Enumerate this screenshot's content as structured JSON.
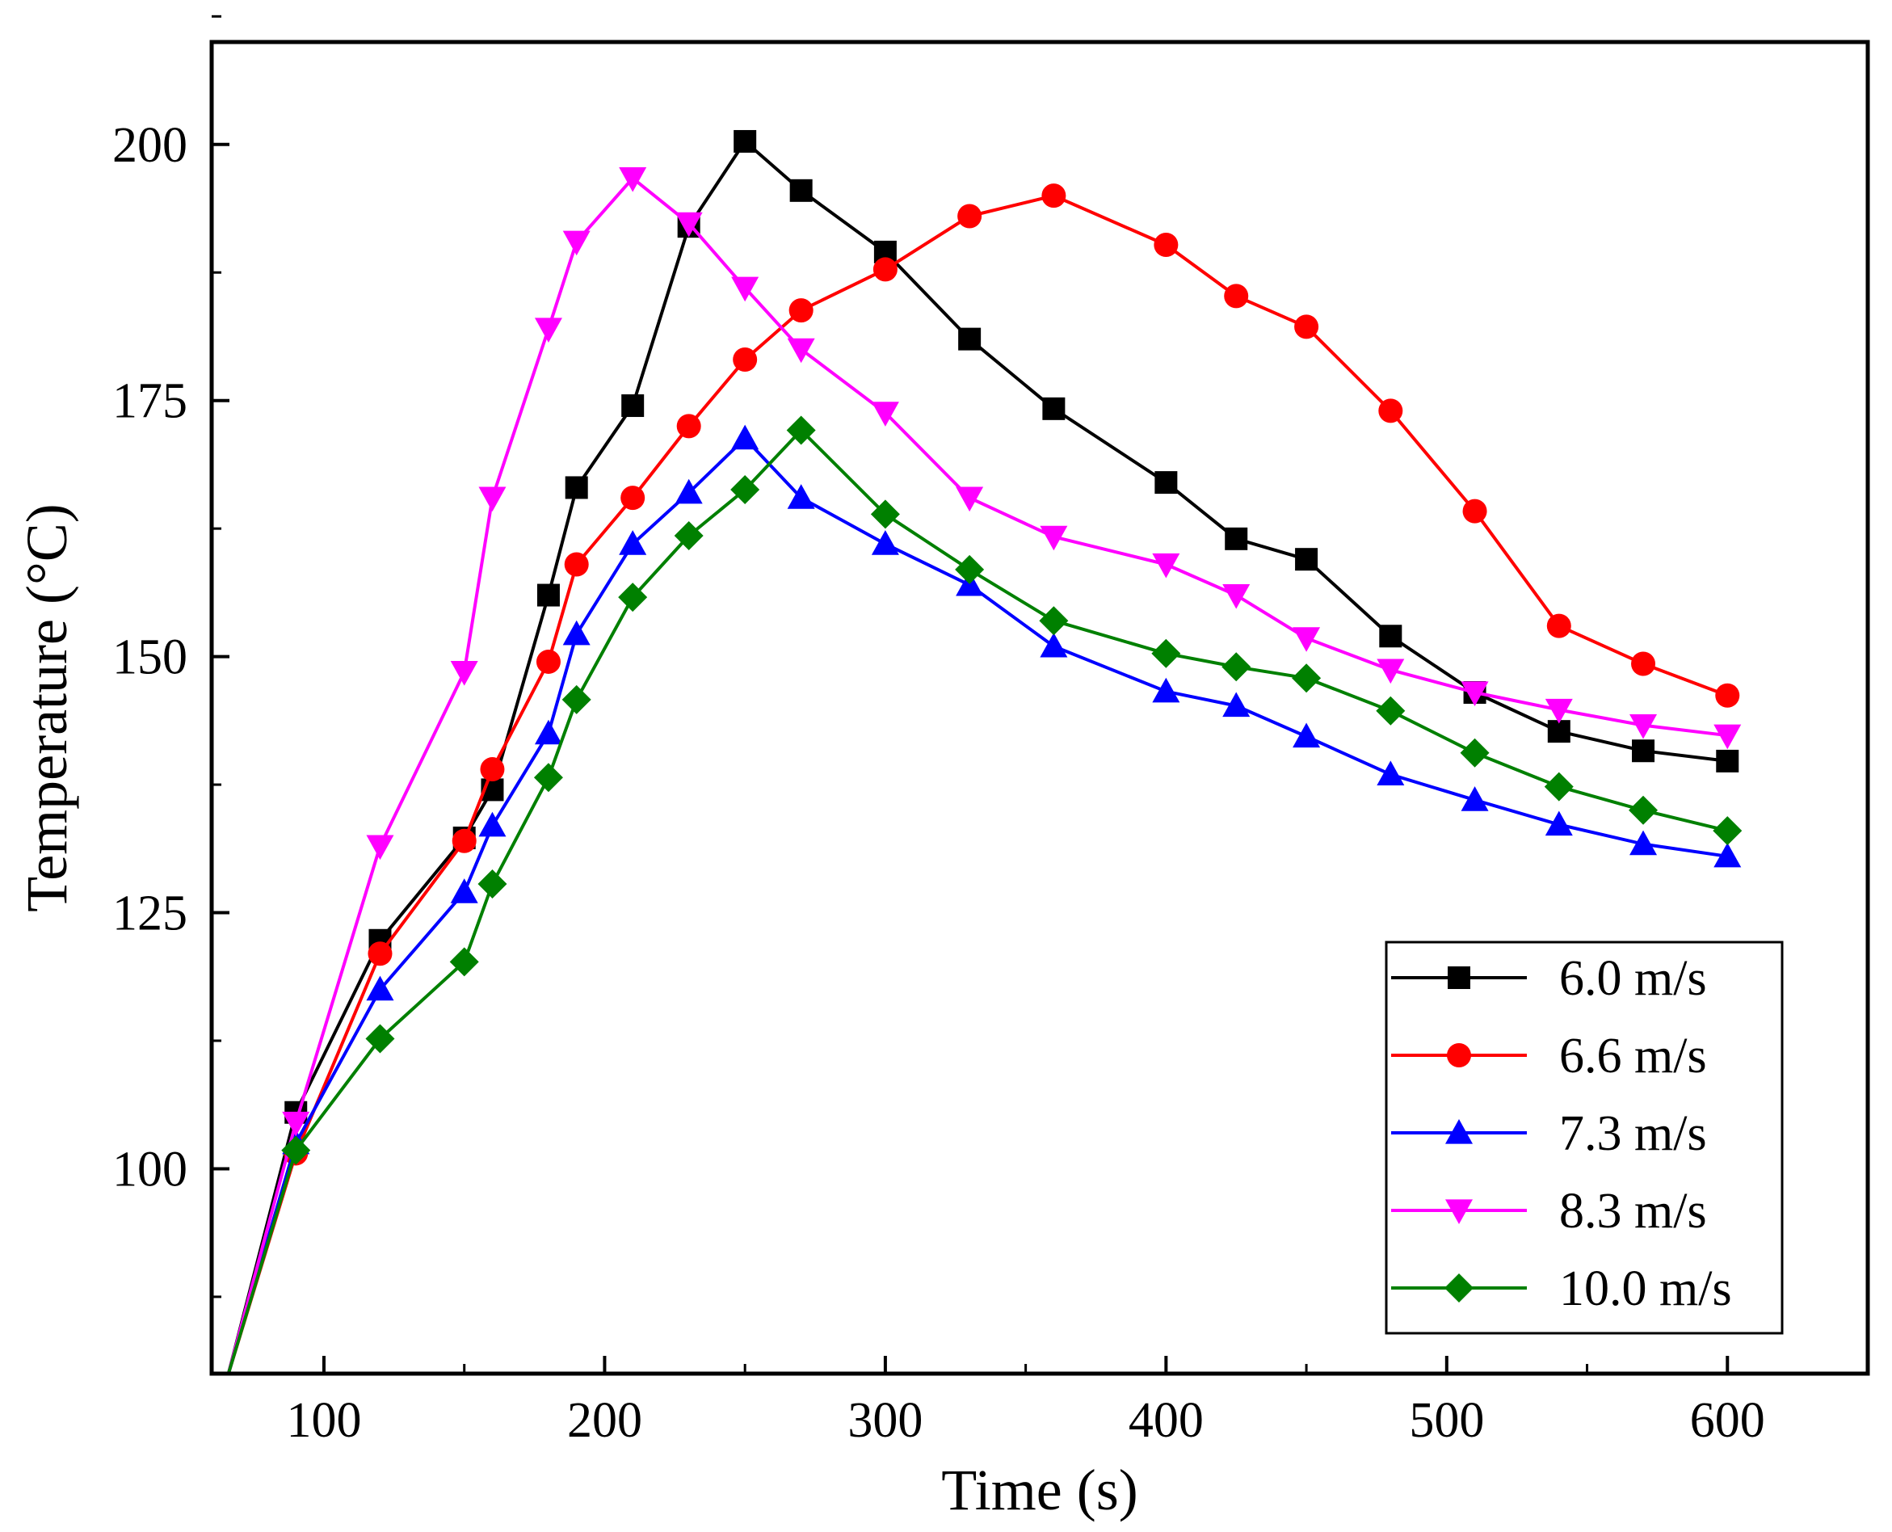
{
  "chart_data": {
    "type": "line",
    "title": "",
    "xlabel": "Time (s)",
    "ylabel": "Temperature (°C)",
    "xlim": [
      60,
      650
    ],
    "ylim": [
      80,
      210
    ],
    "xticks": [
      100,
      200,
      300,
      400,
      500,
      600
    ],
    "xtick_labels": [
      "100",
      "200",
      "300",
      "400",
      "500",
      "600"
    ],
    "yticks": [
      100,
      125,
      150,
      175,
      200
    ],
    "ytick_labels": [
      "100",
      "125",
      "150",
      "175",
      "200"
    ],
    "grid": false,
    "legend_position": "bottom-right",
    "series": [
      {
        "name": "6.0 m/s",
        "color": "#000000",
        "marker": "square",
        "x": [
          66,
          90,
          120,
          150,
          160,
          180,
          190,
          210,
          230,
          250,
          270,
          300,
          330,
          360,
          400,
          425,
          450,
          480,
          510,
          540,
          570,
          600
        ],
        "y": [
          80,
          105.5,
          122.3,
          132.3,
          137,
          156,
          166.5,
          174.5,
          192,
          200.3,
          195.5,
          189.5,
          181,
          174.2,
          167,
          161.5,
          159.5,
          152,
          146.5,
          142.7,
          140.8,
          139.8
        ]
      },
      {
        "name": "6.6 m/s",
        "color": "#ff0000",
        "marker": "circle",
        "x": [
          66,
          90,
          120,
          150,
          160,
          180,
          190,
          210,
          230,
          250,
          270,
          300,
          330,
          360,
          400,
          425,
          450,
          480,
          510,
          540,
          570,
          600
        ],
        "y": [
          80,
          101.5,
          121,
          132,
          139,
          149.5,
          159,
          165.5,
          172.5,
          179,
          183.8,
          187.8,
          193,
          195,
          190.2,
          185.2,
          182.2,
          174,
          164.2,
          153,
          149.3,
          146.2
        ]
      },
      {
        "name": "7.3 m/s",
        "color": "#0000ff",
        "marker": "triangle-up",
        "x": [
          66,
          90,
          120,
          150,
          160,
          180,
          190,
          210,
          230,
          250,
          270,
          300,
          330,
          360,
          400,
          425,
          450,
          480,
          510,
          540,
          570,
          600
        ],
        "y": [
          80,
          102.5,
          117.5,
          127,
          133.5,
          142.5,
          152.2,
          161,
          166,
          171.3,
          165.5,
          161,
          157,
          151,
          146.6,
          145.2,
          142.2,
          138.5,
          136,
          133.6,
          131.7,
          130.5
        ]
      },
      {
        "name": "8.3 m/s",
        "color": "#ff00ff",
        "marker": "triangle-down",
        "x": [
          66,
          90,
          120,
          150,
          160,
          180,
          190,
          210,
          230,
          250,
          270,
          300,
          330,
          360,
          400,
          425,
          450,
          480,
          510,
          540,
          570,
          600
        ],
        "y": [
          80,
          104.5,
          131.5,
          148.5,
          165.5,
          182,
          190.5,
          196.7,
          192.3,
          186,
          180,
          173.8,
          165.5,
          161.7,
          159,
          156,
          151.8,
          148.7,
          146.5,
          144.8,
          143.3,
          142.3
        ]
      },
      {
        "name": "10.0 m/s",
        "color": "#008000",
        "marker": "diamond",
        "x": [
          66,
          90,
          120,
          150,
          160,
          180,
          190,
          210,
          230,
          250,
          270,
          300,
          330,
          360,
          400,
          425,
          450,
          480,
          510,
          540,
          570,
          600
        ],
        "y": [
          80,
          101.8,
          112.7,
          120.2,
          127.8,
          138.2,
          145.8,
          155.8,
          161.8,
          166.3,
          172.1,
          163.9,
          158.5,
          153.5,
          150.3,
          149,
          147.9,
          144.7,
          140.6,
          137.3,
          135,
          133
        ]
      }
    ]
  }
}
